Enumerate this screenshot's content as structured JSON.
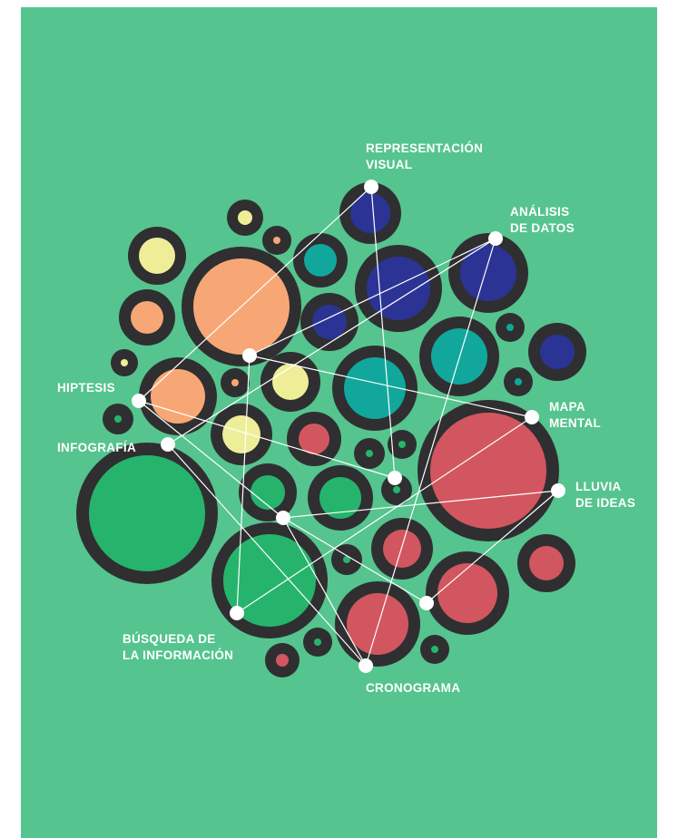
{
  "colors": {
    "background": "#55c48e",
    "ring": "#2f2f31",
    "orange": "#f7a775",
    "navy": "#2b3494",
    "teal": "#12a79c",
    "yellow": "#eeee99",
    "red": "#d2565f",
    "green": "#26b46c",
    "node": "#ffffff",
    "line": "#ffffff",
    "label": "#ffffff"
  },
  "labels": {
    "representacion_visual": [
      "REPRESENTACIÓN",
      "VISUAL"
    ],
    "analisis_de_datos": [
      "ANÁLISIS",
      "DE DATOS"
    ],
    "hiptesis": [
      "HIPTESIS"
    ],
    "infografia": [
      "INFOGRAFÍA"
    ],
    "mapa_mental": [
      "MAPA",
      "MENTAL"
    ],
    "lluvia_de_ideas": [
      "LLUVIA",
      "DE IDEAS"
    ],
    "busqueda_de_la_informacion": [
      "BÚSQUEDA DE",
      "LA INFORMACIÓN"
    ],
    "cronograma": [
      "CRONOGRAMA"
    ]
  }
}
